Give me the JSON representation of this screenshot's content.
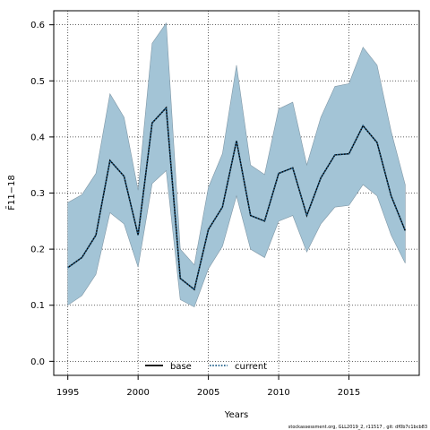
{
  "chart_data": {
    "type": "line",
    "xlabel": "Years",
    "ylabel": "F̄11−18",
    "xlim": [
      1994,
      2020
    ],
    "ylim": [
      -0.025,
      0.625
    ],
    "x_ticks": [
      1995,
      2000,
      2005,
      2010,
      2015
    ],
    "y_ticks": [
      0.0,
      0.1,
      0.2,
      0.3,
      0.4,
      0.5,
      0.6
    ],
    "y_tick_labels": [
      "0.0",
      "0.1",
      "0.2",
      "0.3",
      "0.4",
      "0.5",
      "0.6"
    ],
    "grid": true,
    "legend_position": "bottom-center",
    "x": [
      1995,
      1996,
      1997,
      1998,
      1999,
      2000,
      2001,
      2002,
      2003,
      2004,
      2005,
      2006,
      2007,
      2008,
      2009,
      2010,
      2011,
      2012,
      2013,
      2014,
      2015,
      2016,
      2017,
      2018,
      2019
    ],
    "series": [
      {
        "name": "base",
        "style": "solid",
        "color": "#000000",
        "values": [
          0.167,
          0.185,
          0.225,
          0.358,
          0.33,
          0.225,
          0.425,
          0.452,
          0.148,
          0.128,
          0.235,
          0.275,
          0.393,
          0.26,
          0.25,
          0.335,
          0.345,
          0.26,
          0.327,
          0.368,
          0.37,
          0.42,
          0.39,
          0.295,
          0.233
        ]
      },
      {
        "name": "current",
        "style": "dotted",
        "color": "#1f5f8b",
        "values": [
          0.167,
          0.185,
          0.225,
          0.358,
          0.33,
          0.225,
          0.425,
          0.452,
          0.148,
          0.128,
          0.235,
          0.275,
          0.393,
          0.26,
          0.25,
          0.335,
          0.345,
          0.26,
          0.327,
          0.368,
          0.37,
          0.42,
          0.39,
          0.295,
          0.233
        ]
      }
    ],
    "band": {
      "color": "#a3c4d6",
      "lower": [
        0.1,
        0.117,
        0.155,
        0.265,
        0.245,
        0.168,
        0.317,
        0.34,
        0.11,
        0.097,
        0.165,
        0.205,
        0.295,
        0.2,
        0.185,
        0.25,
        0.26,
        0.195,
        0.245,
        0.275,
        0.278,
        0.315,
        0.295,
        0.225,
        0.175
      ],
      "upper": [
        0.283,
        0.297,
        0.335,
        0.477,
        0.435,
        0.305,
        0.567,
        0.603,
        0.2,
        0.172,
        0.31,
        0.37,
        0.528,
        0.35,
        0.333,
        0.45,
        0.462,
        0.35,
        0.435,
        0.49,
        0.495,
        0.56,
        0.528,
        0.41,
        0.315
      ]
    }
  },
  "footer": {
    "text": "stockassessment.org, GLL2019_2, r11517 , git: df0b7c1bcb83"
  }
}
